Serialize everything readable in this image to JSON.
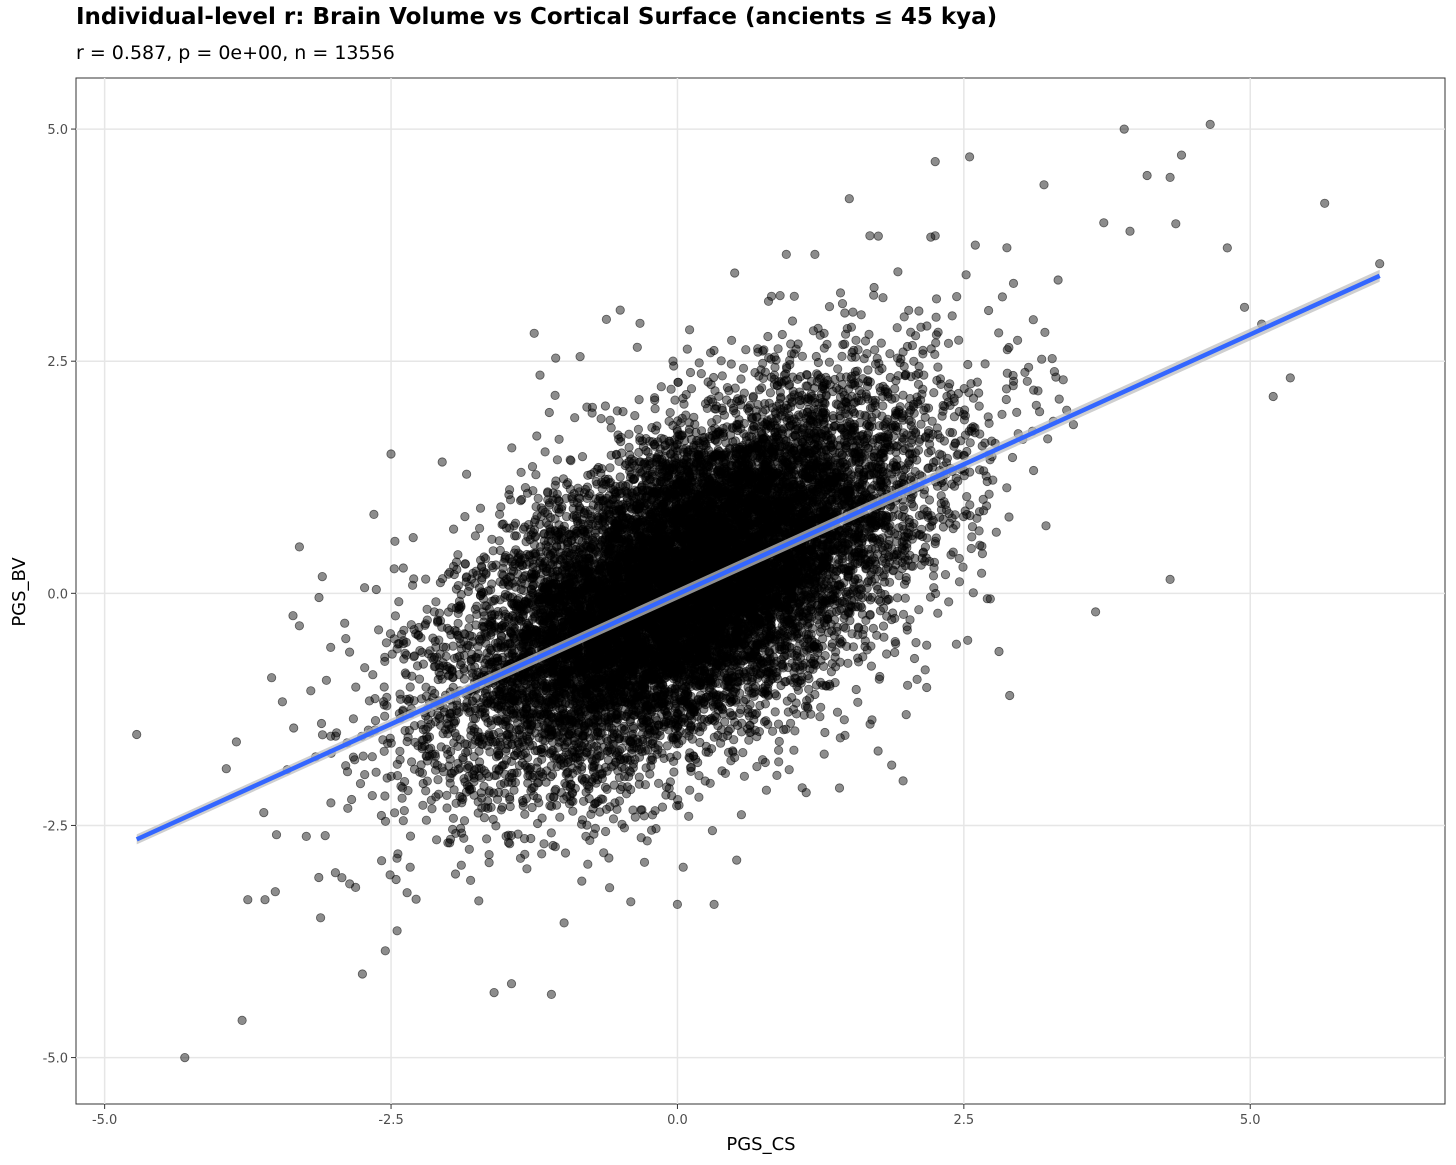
{
  "chart_data": {
    "type": "scatter",
    "title": "Individual-level r: Brain Volume vs Cortical Surface (ancients ≤ 45 kya)",
    "subtitle": "r = 0.587, p = 0e+00, n = 13556",
    "xlabel": "PGS_CS",
    "ylabel": "PGS_BV",
    "xlim": [
      -5.25,
      6.7
    ],
    "ylim": [
      -5.5,
      5.55
    ],
    "x_ticks": [
      -5.0,
      -2.5,
      0.0,
      2.5,
      5.0
    ],
    "x_tick_labels": [
      "-5.0",
      "-2.5",
      "0.0",
      "2.5",
      "5.0"
    ],
    "y_ticks": [
      -5.0,
      -2.5,
      0.0,
      2.5,
      5.0
    ],
    "y_tick_labels": [
      "-5.0",
      "-2.5",
      "0.0",
      "2.5",
      "5.0"
    ],
    "grid": true,
    "correlation_r": 0.587,
    "n": 13556,
    "point_color": "#000000",
    "point_opacity": 0.45,
    "fit_line": {
      "type": "linear",
      "color": "#3366ff",
      "band_color": "#bfbfbf",
      "points": [
        [
          -4.72,
          -2.65
        ],
        [
          6.13,
          3.42
        ]
      ]
    },
    "outlier_points": [
      [
        -4.72,
        -1.52
      ],
      [
        -4.3,
        -5.0
      ],
      [
        -3.85,
        -1.6
      ],
      [
        -3.8,
        -4.6
      ],
      [
        -3.75,
        -3.3
      ],
      [
        -3.6,
        -3.3
      ],
      [
        -3.5,
        -2.6
      ],
      [
        -3.35,
        -1.45
      ],
      [
        -3.3,
        -0.35
      ],
      [
        -3.2,
        -1.05
      ],
      [
        -3.3,
        0.5
      ],
      [
        -3.1,
        0.18
      ],
      [
        -2.75,
        -4.1
      ],
      [
        -2.55,
        -3.85
      ],
      [
        -2.5,
        1.5
      ],
      [
        -2.65,
        0.85
      ],
      [
        -1.6,
        -4.3
      ],
      [
        -1.1,
        -4.32
      ],
      [
        -1.25,
        2.8
      ],
      [
        -1.2,
        2.35
      ],
      [
        -0.85,
        2.55
      ],
      [
        -0.5,
        3.05
      ],
      [
        -0.62,
        2.95
      ],
      [
        -0.35,
        2.65
      ],
      [
        0.0,
        -3.35
      ],
      [
        0.05,
        -2.95
      ],
      [
        0.5,
        3.45
      ],
      [
        0.95,
        3.65
      ],
      [
        1.2,
        3.65
      ],
      [
        1.5,
        4.25
      ],
      [
        1.68,
        3.85
      ],
      [
        2.25,
        4.65
      ],
      [
        2.55,
        4.7
      ],
      [
        2.25,
        3.85
      ],
      [
        2.6,
        3.75
      ],
      [
        3.2,
        4.4
      ],
      [
        3.95,
        3.9
      ],
      [
        3.9,
        5.0
      ],
      [
        4.1,
        4.5
      ],
      [
        4.3,
        4.48
      ],
      [
        4.4,
        4.72
      ],
      [
        4.35,
        3.98
      ],
      [
        4.65,
        5.05
      ],
      [
        5.65,
        4.2
      ],
      [
        4.8,
        3.72
      ],
      [
        4.95,
        3.08
      ],
      [
        5.1,
        2.9
      ],
      [
        5.2,
        2.12
      ],
      [
        5.35,
        2.32
      ],
      [
        6.13,
        3.55
      ],
      [
        4.3,
        0.15
      ],
      [
        3.65,
        -0.2
      ],
      [
        2.9,
        -1.1
      ],
      [
        1.87,
        -1.85
      ],
      [
        1.97,
        -2.02
      ],
      [
        -0.05,
        -2.18
      ],
      [
        0.32,
        -3.35
      ]
    ]
  }
}
